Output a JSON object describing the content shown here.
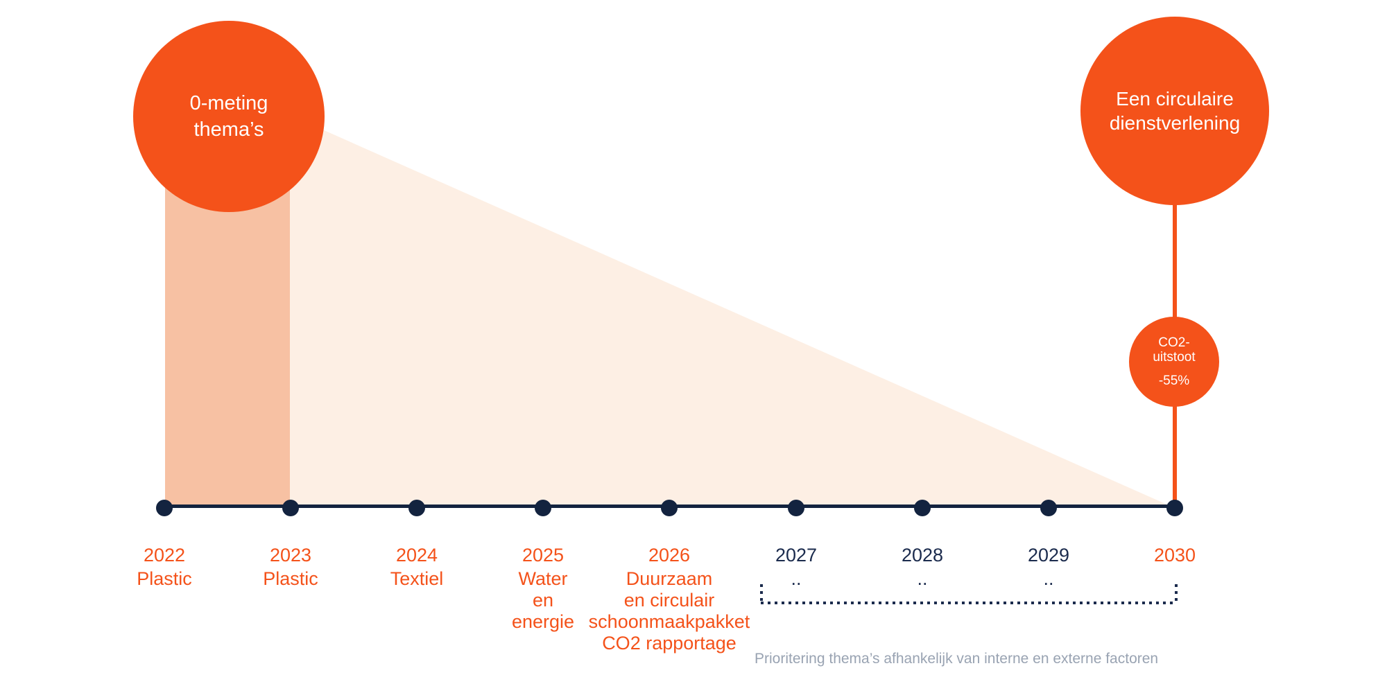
{
  "left_circle": {
    "line1": "0-meting",
    "line2": "thema’s"
  },
  "right_circle": {
    "line1": "Een circulaire",
    "line2": "dienstverlening"
  },
  "co2_circle": {
    "line1": "CO2-",
    "line2": "uitstoot",
    "line3": "-55%"
  },
  "timeline": {
    "items": [
      {
        "year": "2022",
        "color": "orange",
        "label_lines": [
          "Plastic"
        ]
      },
      {
        "year": "2023",
        "color": "orange",
        "label_lines": [
          "Plastic"
        ]
      },
      {
        "year": "2024",
        "color": "orange",
        "label_lines": [
          "Textiel"
        ]
      },
      {
        "year": "2025",
        "color": "orange",
        "label_lines": [
          "Water",
          "en",
          "energie"
        ]
      },
      {
        "year": "2026",
        "color": "orange",
        "label_lines": [
          "Duurzaam",
          "en circulair",
          "schoonmaakpakket",
          "CO2 rapportage"
        ]
      },
      {
        "year": "2027",
        "color": "navy",
        "label_lines": [
          ".."
        ]
      },
      {
        "year": "2028",
        "color": "navy",
        "label_lines": [
          ".."
        ]
      },
      {
        "year": "2029",
        "color": "navy",
        "label_lines": [
          ".."
        ]
      },
      {
        "year": "2030",
        "color": "orange",
        "label_lines": []
      }
    ]
  },
  "footnote": "Prioritering thema’s afhankelijk van interne en externe factoren",
  "colors": {
    "orange": "#F4521A",
    "salmon": "#F7C1A3",
    "peach": "#FDEFE4",
    "navy": "#13233F",
    "navy_text": "#1B2B4D",
    "footnote_gray": "#99A3B2"
  }
}
